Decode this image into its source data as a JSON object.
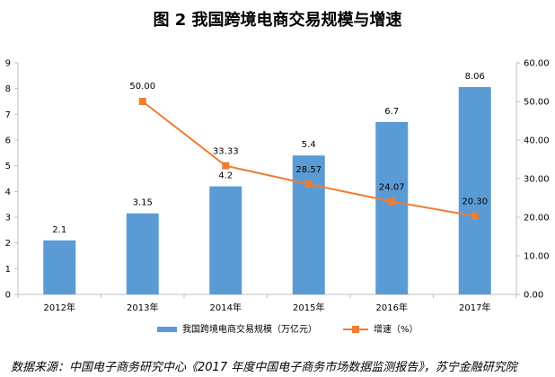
{
  "title": "图 2  我国跨境电商交易规模与增速",
  "source": "数据来源：中国电子商务研究中心《2017 年度中国电子商务市场数据监测报告》，苏宁金融研究院",
  "colors": {
    "bar": "#5b9bd5",
    "line": "#ed7d31",
    "axis": "#bfbfbf"
  },
  "chart_data": {
    "type": "bar+line",
    "categories": [
      "2012年",
      "2013年",
      "2014年",
      "2015年",
      "2016年",
      "2017年"
    ],
    "series": [
      {
        "name": "我国跨境电商交易规模（万亿元）",
        "type": "bar",
        "axis": "left",
        "values": [
          2.1,
          3.15,
          4.2,
          5.4,
          6.7,
          8.06
        ],
        "labels": [
          "2.1",
          "3.15",
          "4.2",
          "5.4",
          "6.7",
          "8.06"
        ]
      },
      {
        "name": "增速（%）",
        "type": "line",
        "axis": "right",
        "values": [
          null,
          50.0,
          33.33,
          28.57,
          24.07,
          20.3
        ],
        "labels": [
          "",
          "50.00",
          "33.33",
          "28.57",
          "24.07",
          "20.30"
        ]
      }
    ],
    "y_left": {
      "min": 0,
      "max": 9,
      "ticks": [
        "0",
        "1",
        "2",
        "3",
        "4",
        "5",
        "6",
        "7",
        "8",
        "9"
      ]
    },
    "y_right": {
      "min": 0,
      "max": 60,
      "ticks": [
        "0.00",
        "10.00",
        "20.00",
        "30.00",
        "40.00",
        "50.00",
        "60.00"
      ]
    },
    "legend": "bottom-center",
    "grid": false
  }
}
